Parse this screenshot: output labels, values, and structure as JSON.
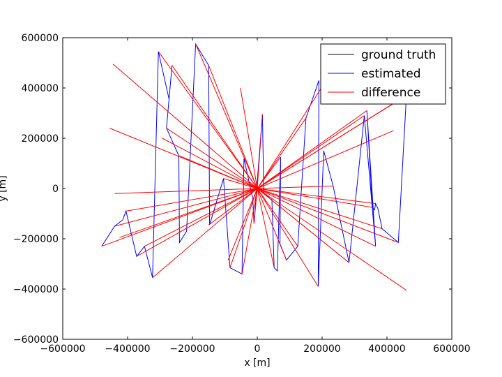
{
  "chart_data": {
    "type": "line",
    "title": "",
    "xlabel": "x [m]",
    "ylabel": "y [m]",
    "xlim": [
      -600000,
      600000
    ],
    "ylim": [
      -600000,
      600000
    ],
    "xticks": [
      -600000,
      -400000,
      -200000,
      0,
      200000,
      400000,
      600000
    ],
    "yticks": [
      -600000,
      -400000,
      -200000,
      0,
      200000,
      400000,
      600000
    ],
    "xtick_labels": [
      "−600000",
      "−400000",
      "−200000",
      "0",
      "200000",
      "400000",
      "600000"
    ],
    "ytick_labels": [
      "−600000",
      "−400000",
      "−200000",
      "0",
      "200000",
      "400000",
      "600000"
    ],
    "grid": false,
    "legend_position": "top-right",
    "series": [
      {
        "name": "ground truth",
        "color": "#000000",
        "style": "line",
        "points": [
          [
            0,
            0
          ]
        ]
      },
      {
        "name": "estimated",
        "color": "#0000ff",
        "style": "path",
        "points": [
          [
            -480000,
            -230000
          ],
          [
            -440000,
            -150000
          ],
          [
            -415000,
            -125000
          ],
          [
            -405000,
            -90000
          ],
          [
            -372000,
            -270000
          ],
          [
            -348000,
            -230000
          ],
          [
            -323000,
            -355000
          ],
          [
            -305000,
            545000
          ],
          [
            -272000,
            355000
          ],
          [
            -263000,
            490000
          ],
          [
            -280000,
            240000
          ],
          [
            -242000,
            130000
          ],
          [
            -240000,
            -215000
          ],
          [
            -218000,
            -170000
          ],
          [
            -190000,
            575000
          ],
          [
            -150000,
            490000
          ],
          [
            -147000,
            -145000
          ],
          [
            -104000,
            40000
          ],
          [
            -84000,
            -315000
          ],
          [
            -47000,
            -340000
          ],
          [
            -41000,
            120000
          ],
          [
            -14000,
            -40000
          ],
          [
            -10000,
            -140000
          ],
          [
            16000,
            295000
          ],
          [
            20000,
            -20000
          ],
          [
            45000,
            -40000
          ],
          [
            52000,
            -315000
          ],
          [
            62000,
            -328000
          ],
          [
            72000,
            125000
          ],
          [
            70000,
            -220000
          ],
          [
            90000,
            -285000
          ],
          [
            125000,
            -230000
          ],
          [
            150000,
            280000
          ],
          [
            190000,
            430000
          ],
          [
            188000,
            -390000
          ],
          [
            205000,
            150000
          ],
          [
            234000,
            10000
          ],
          [
            283000,
            -295000
          ],
          [
            330000,
            290000
          ],
          [
            365000,
            -230000
          ],
          [
            338000,
            310000
          ],
          [
            355000,
            -75000
          ],
          [
            362000,
            -85000
          ],
          [
            365000,
            -60000
          ],
          [
            372000,
            -80000
          ],
          [
            385000,
            -160000
          ],
          [
            435000,
            -215000
          ],
          [
            460000,
            370000
          ]
        ]
      },
      {
        "name": "difference",
        "color": "#ff0000",
        "style": "segments-from-origin",
        "points": [
          [
            -480000,
            -230000
          ],
          [
            -440000,
            -150000
          ],
          [
            -425000,
            -195000
          ],
          [
            -405000,
            -90000
          ],
          [
            -372000,
            -270000
          ],
          [
            -323000,
            -355000
          ],
          [
            -348000,
            -230000
          ],
          [
            -440000,
            -20000
          ],
          [
            -455000,
            240000
          ],
          [
            -445000,
            495000
          ],
          [
            -305000,
            545000
          ],
          [
            -293000,
            200000
          ],
          [
            -263000,
            490000
          ],
          [
            -280000,
            240000
          ],
          [
            -240000,
            130000
          ],
          [
            -190000,
            575000
          ],
          [
            -150000,
            490000
          ],
          [
            -150000,
            -145000
          ],
          [
            -105000,
            40000
          ],
          [
            -90000,
            -285000
          ],
          [
            -84000,
            -315000
          ],
          [
            -47000,
            -340000
          ],
          [
            -52000,
            400000
          ],
          [
            16000,
            295000
          ],
          [
            -10000,
            -140000
          ],
          [
            45000,
            -40000
          ],
          [
            52000,
            -315000
          ],
          [
            72000,
            125000
          ],
          [
            90000,
            -285000
          ],
          [
            125000,
            -230000
          ],
          [
            150000,
            280000
          ],
          [
            188000,
            -390000
          ],
          [
            210000,
            425000
          ],
          [
            234000,
            10000
          ],
          [
            283000,
            -295000
          ],
          [
            330000,
            290000
          ],
          [
            338000,
            310000
          ],
          [
            355000,
            -75000
          ],
          [
            365000,
            -230000
          ],
          [
            365000,
            -60000
          ],
          [
            385000,
            -160000
          ],
          [
            420000,
            230000
          ],
          [
            435000,
            -215000
          ],
          [
            460000,
            370000
          ],
          [
            460000,
            -405000
          ],
          [
            440000,
            355000
          ]
        ]
      }
    ]
  }
}
